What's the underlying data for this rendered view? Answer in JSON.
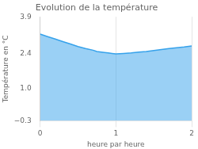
{
  "chart_data": {
    "type": "area",
    "title": "Evolution de la température",
    "xlabel": "heure par heure",
    "ylabel": "Température en °C",
    "x": [
      0,
      0.1,
      0.2,
      0.3,
      0.4,
      0.5,
      0.6,
      0.7,
      0.75,
      0.85,
      0.9,
      0.95,
      1.0,
      1.05,
      1.1,
      1.2,
      1.3,
      1.4,
      1.5,
      1.6,
      1.7,
      1.8,
      1.9,
      2.0
    ],
    "values": [
      3.2,
      3.1,
      3.0,
      2.9,
      2.8,
      2.7,
      2.62,
      2.55,
      2.5,
      2.46,
      2.44,
      2.42,
      2.4,
      2.41,
      2.42,
      2.44,
      2.47,
      2.5,
      2.54,
      2.58,
      2.62,
      2.65,
      2.68,
      2.72
    ],
    "xlim": [
      0,
      2
    ],
    "ylim": [
      -0.3,
      3.9
    ],
    "xticks": [
      0,
      1,
      2
    ],
    "yticks": [
      {
        "value": -0.3,
        "label": "−0.3"
      },
      {
        "value": 1.0,
        "label": "1.0"
      },
      2.4,
      3.9
    ],
    "grid": "x"
  }
}
